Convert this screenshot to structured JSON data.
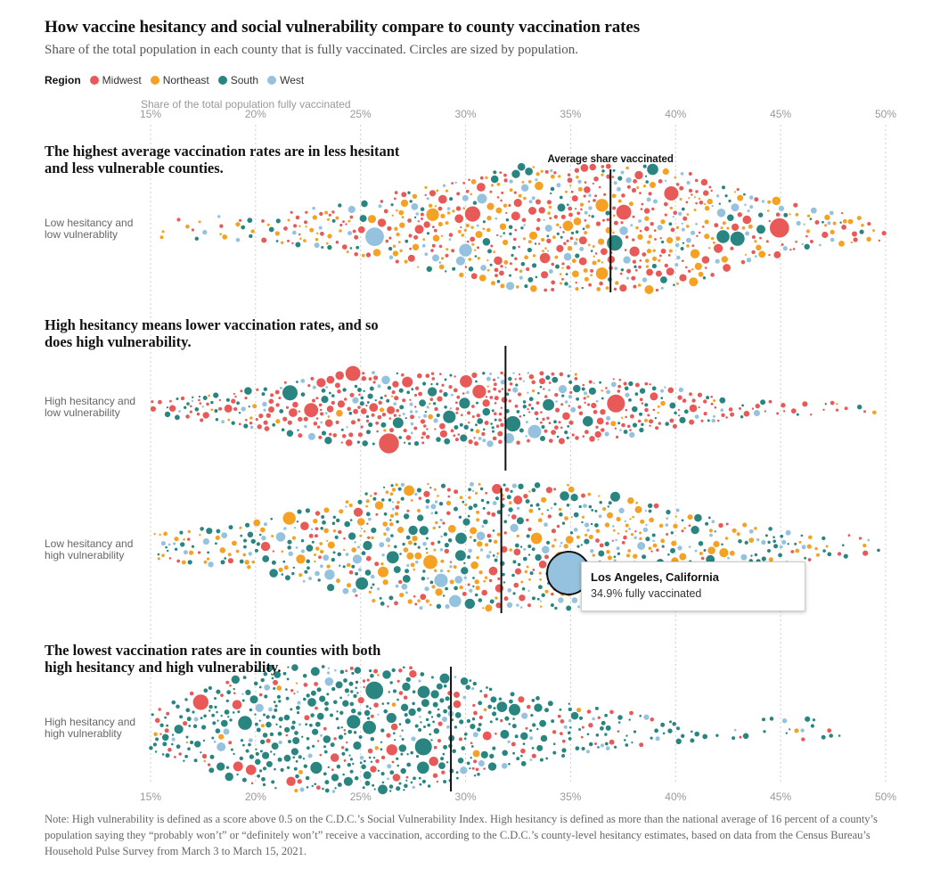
{
  "title": "How vaccine hesitancy and social vulnerability compare to county vaccination rates",
  "subtitle": "Share of the total population in each county that is fully vaccinated. Circles are sized by population.",
  "legend": {
    "title": "Region",
    "items": [
      {
        "label": "Midwest",
        "color": "#e85a57"
      },
      {
        "label": "Northeast",
        "color": "#f5a123"
      },
      {
        "label": "South",
        "color": "#2a8580"
      },
      {
        "label": "West",
        "color": "#95c2de"
      }
    ]
  },
  "headings": {
    "p1": "The highest average vaccination rates are in less hesitant and less vulnerable counties.",
    "p2": "High hesitancy means lower vaccination rates, and so does high vulnerability.",
    "p3": "The lowest vaccination rates are in counties with both high hesitancy and high vulnerability."
  },
  "row_labels": {
    "r1a": "Low hesitancy and",
    "r1b": "low vulnerablity",
    "r2a": "High hesitancy and",
    "r2b": "low vulnerability",
    "r3a": "Low hesitancy and",
    "r3b": "high vulnerability",
    "r4a": "High hesitancy and",
    "r4b": "high vulnerablity"
  },
  "tooltip": {
    "title": "Los Angeles, California",
    "value": "34.9% fully vaccinated"
  },
  "note": "Note: High vulnerability is defined as a score above 0.5 on the C.D.C.’s Social Vulnerability Index. High hesitancy is defined as more than the national average of 16 percent of a county’s population saying they “probably won’t” or “definitely won’t” receive a vaccination, according to the C.D.C.’s county-level hesitancy estimates, based on data from the Census Bureau’s Household Pulse Survey from March 3 to March 15, 2021.",
  "chart_data": {
    "type": "scatter",
    "subtype": "beeswarm",
    "title": "How vaccine hesitancy and social vulnerability compare to county vaccination rates",
    "xlabel": "Share of the total population fully vaccinated",
    "xlim": [
      15,
      50
    ],
    "x_ticks": [
      "15%",
      "20%",
      "25%",
      "30%",
      "35%",
      "40%",
      "45%",
      "50%"
    ],
    "grid": true,
    "legend_position": "top-left",
    "average_label": "Average share vaccinated",
    "groups": [
      {
        "name": "Low hesitancy and low vulnerablity",
        "average": 36.9,
        "profile": [
          [
            15,
            0.02
          ],
          [
            20,
            0.06
          ],
          [
            24,
            0.22
          ],
          [
            27,
            0.45
          ],
          [
            30,
            0.62
          ],
          [
            33,
            0.9
          ],
          [
            36,
            1.0
          ],
          [
            38,
            0.95
          ],
          [
            41,
            0.7
          ],
          [
            44,
            0.35
          ],
          [
            47,
            0.12
          ],
          [
            50,
            0.05
          ]
        ],
        "region_mix": {
          "Midwest": 0.35,
          "Northeast": 0.35,
          "South": 0.15,
          "West": 0.15
        }
      },
      {
        "name": "High hesitancy and low vulnerability",
        "average": 31.9,
        "profile": [
          [
            15,
            0.05
          ],
          [
            19,
            0.3
          ],
          [
            23,
            0.75
          ],
          [
            26,
            0.95
          ],
          [
            30,
            1.0
          ],
          [
            33,
            0.95
          ],
          [
            37,
            0.7
          ],
          [
            40,
            0.4
          ],
          [
            43,
            0.12
          ],
          [
            47,
            0.03
          ],
          [
            50,
            0.01
          ]
        ],
        "region_mix": {
          "Midwest": 0.55,
          "Northeast": 0.05,
          "South": 0.25,
          "West": 0.15
        }
      },
      {
        "name": "Low hesitancy and high vulnerability",
        "average": 31.7,
        "profile": [
          [
            15,
            0.05
          ],
          [
            20,
            0.25
          ],
          [
            24,
            0.55
          ],
          [
            27,
            0.9
          ],
          [
            30,
            1.0
          ],
          [
            34,
            0.95
          ],
          [
            37,
            0.7
          ],
          [
            41,
            0.35
          ],
          [
            44,
            0.15
          ],
          [
            48,
            0.05
          ],
          [
            50,
            0.02
          ]
        ],
        "region_mix": {
          "Midwest": 0.15,
          "Northeast": 0.3,
          "South": 0.35,
          "West": 0.2
        },
        "highlight": {
          "label": "Los Angeles, California",
          "value": 34.9,
          "region": "West"
        }
      },
      {
        "name": "High hesitancy and high vulnerablity",
        "average": 29.3,
        "profile": [
          [
            15,
            0.2
          ],
          [
            18,
            0.55
          ],
          [
            21,
            0.9
          ],
          [
            24,
            1.0
          ],
          [
            27,
            0.9
          ],
          [
            30,
            0.65
          ],
          [
            33,
            0.4
          ],
          [
            36,
            0.2
          ],
          [
            39,
            0.08
          ],
          [
            42,
            0.03
          ],
          [
            45,
            0.02
          ],
          [
            50,
            0.01
          ]
        ],
        "region_mix": {
          "Midwest": 0.15,
          "Northeast": 0.02,
          "South": 0.75,
          "West": 0.08
        }
      }
    ]
  }
}
